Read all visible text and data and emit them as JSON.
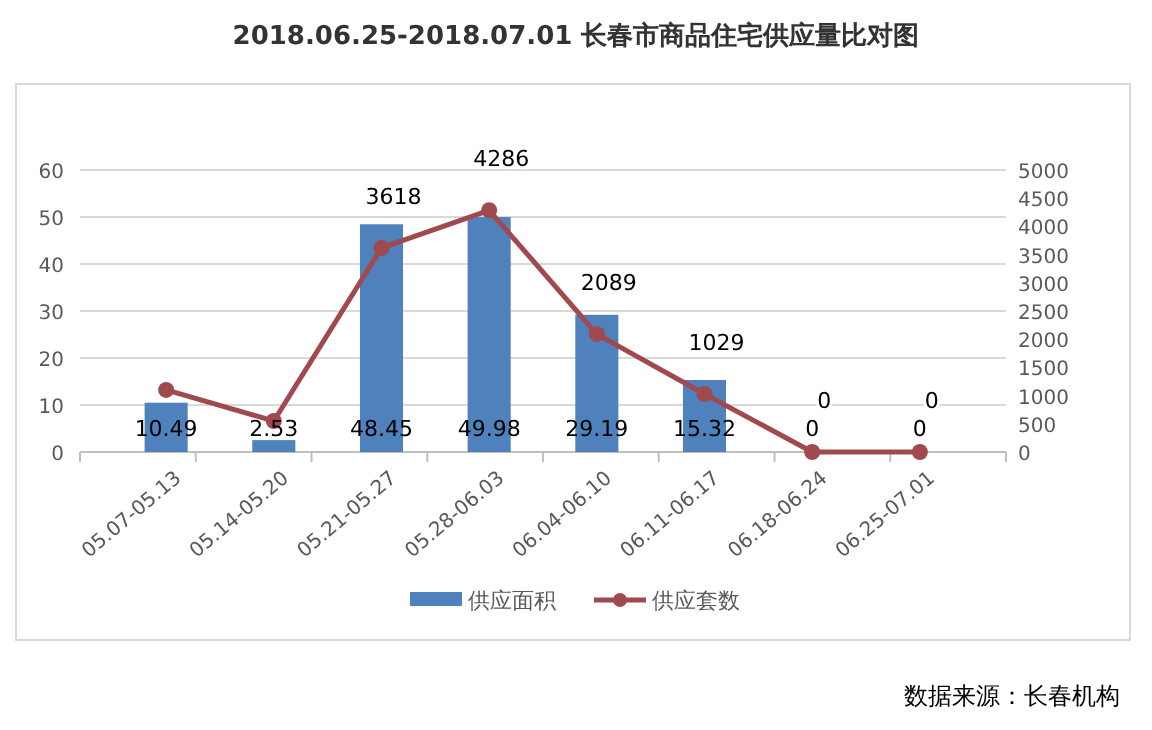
{
  "chart_data": {
    "type": "bar",
    "title": "2018.06.25-2018.07.01 长春市商品住宅供应量比对图",
    "categories": [
      "05.07-05.13",
      "05.14-05.20",
      "05.21-05.27",
      "05.28-06.03",
      "06.04-06.10",
      "06.11-06.17",
      "06.18-06.24",
      "06.25-07.01"
    ],
    "series": [
      {
        "name": "供应面积",
        "color": "#4f81bd",
        "values": [
          10.49,
          2.53,
          48.45,
          49.98,
          29.19,
          15.32,
          0,
          0
        ],
        "value_labels": [
          "10.49",
          "2.53",
          "48.45",
          "49.98",
          "29.19",
          "15.32",
          "0",
          "0"
        ]
      },
      {
        "name": "供应套数",
        "type": "line",
        "axis": "y2",
        "color": "#a0494e",
        "marker": "circle",
        "values": [
          1100,
          550,
          3618,
          4286,
          2089,
          1029,
          0,
          0
        ],
        "value_labels": [
          null,
          null,
          "3618",
          "4286",
          "2089",
          "1029",
          "0",
          "0"
        ]
      }
    ],
    "ylim": [
      0,
      60
    ],
    "yticks": [
      0,
      10,
      20,
      30,
      40,
      50,
      60
    ],
    "y2lim": [
      0,
      5000
    ],
    "y2ticks": [
      0,
      500,
      1000,
      1500,
      2000,
      2500,
      3000,
      3500,
      4000,
      4500,
      5000
    ],
    "grid": "y",
    "legend": "bottom",
    "annotations": [
      "数据来源：长春机构"
    ]
  }
}
